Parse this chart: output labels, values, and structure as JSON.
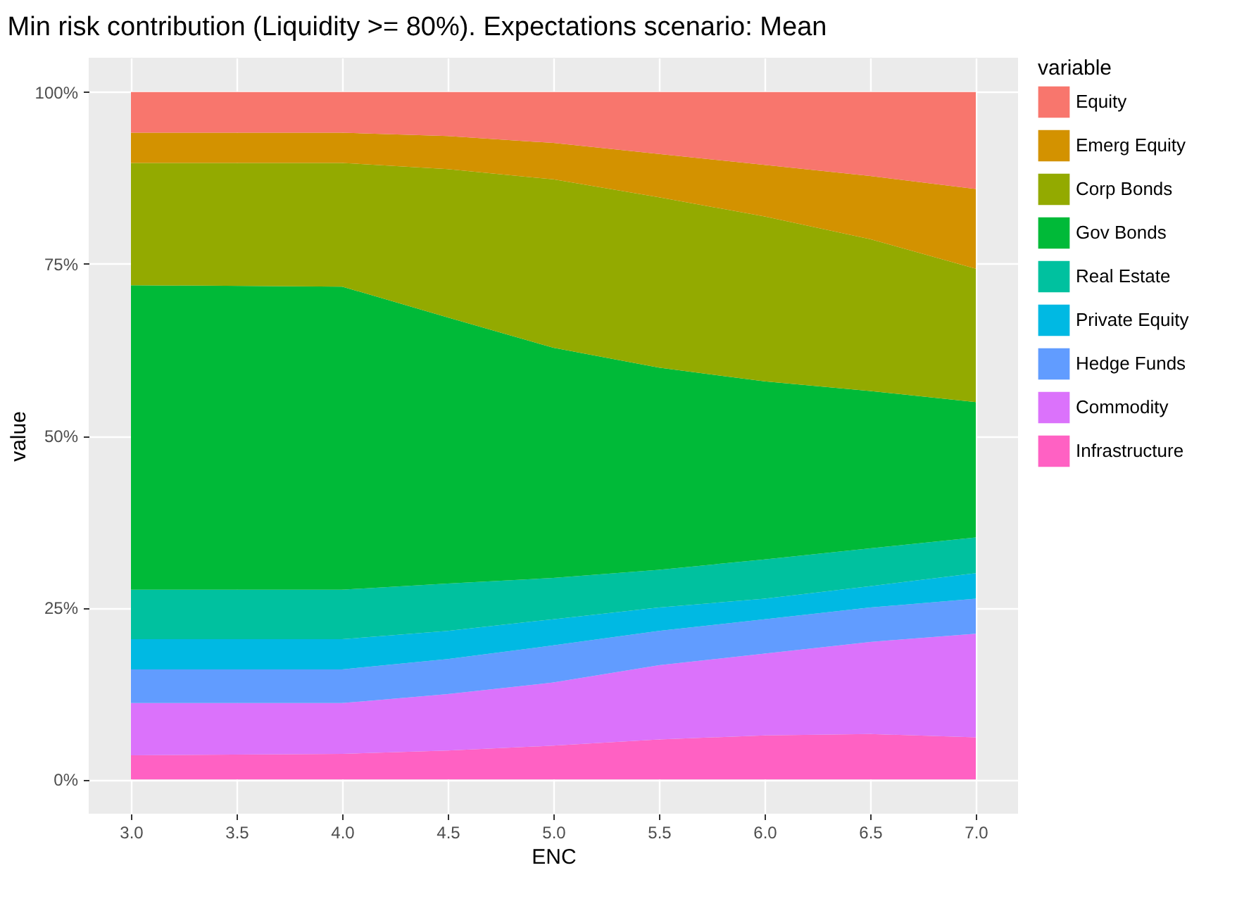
{
  "chart_data": {
    "type": "area",
    "stacked": true,
    "title": "Min risk contribution (Liquidity >= 80%). Expectations scenario: Mean",
    "xlabel": "ENC",
    "ylabel": "value",
    "legend_title": "variable",
    "legend": "right",
    "grid": true,
    "x": [
      3,
      4,
      4.5,
      5,
      5.5,
      6,
      6.5,
      7
    ],
    "xlim": [
      2.8,
      7.2
    ],
    "xticks": [
      {
        "value": 3,
        "label": "3.0"
      },
      {
        "value": 3.5,
        "label": "3.5"
      },
      {
        "value": 4,
        "label": "4.0"
      },
      {
        "value": 4.5,
        "label": "4.5"
      },
      {
        "value": 5,
        "label": "5.0"
      },
      {
        "value": 5.5,
        "label": "5.5"
      },
      {
        "value": 6,
        "label": "6.0"
      },
      {
        "value": 6.5,
        "label": "6.5"
      },
      {
        "value": 7,
        "label": "7.0"
      }
    ],
    "ylim": [
      -5,
      105
    ],
    "yticks": [
      {
        "value": 0,
        "label": "0%"
      },
      {
        "value": 25,
        "label": "25%"
      },
      {
        "value": 50,
        "label": "50%"
      },
      {
        "value": 75,
        "label": "75%"
      },
      {
        "value": 100,
        "label": "100%"
      }
    ],
    "series": [
      {
        "name": "Infrastructure",
        "color": "#ff61c3",
        "values": [
          3.5,
          3.7,
          4.2,
          4.9,
          5.8,
          6.4,
          6.6,
          6.1
        ]
      },
      {
        "name": "Commodity",
        "color": "#db72fb",
        "values": [
          7.6,
          7.4,
          8.2,
          9.2,
          10.8,
          11.9,
          13.4,
          15.1
        ]
      },
      {
        "name": "Hedge Funds",
        "color": "#619cff",
        "values": [
          4.9,
          4.9,
          5.1,
          5.4,
          5.0,
          5.0,
          5.0,
          5.1
        ]
      },
      {
        "name": "Private Equity",
        "color": "#00b9e3",
        "values": [
          4.4,
          4.4,
          4.1,
          3.8,
          3.4,
          3.0,
          3.1,
          3.7
        ]
      },
      {
        "name": "Real Estate",
        "color": "#00c19f",
        "values": [
          7.2,
          7.2,
          6.9,
          6.0,
          5.5,
          5.7,
          5.5,
          5.2
        ]
      },
      {
        "name": "Gov Bonds",
        "color": "#00ba38",
        "values": [
          44.3,
          44.1,
          38.7,
          33.5,
          29.4,
          25.9,
          22.9,
          19.7
        ]
      },
      {
        "name": "Corp Bonds",
        "color": "#93aa00",
        "values": [
          17.8,
          18.0,
          21.6,
          24.5,
          24.8,
          24.0,
          22.1,
          19.4
        ]
      },
      {
        "name": "Emerg Equity",
        "color": "#d39200",
        "values": [
          4.4,
          4.4,
          4.8,
          5.3,
          6.3,
          7.5,
          9.2,
          11.6
        ]
      },
      {
        "name": "Equity",
        "color": "#f8766d",
        "values": [
          5.9,
          5.9,
          6.4,
          7.4,
          9.0,
          10.6,
          12.2,
          14.1
        ]
      }
    ]
  }
}
